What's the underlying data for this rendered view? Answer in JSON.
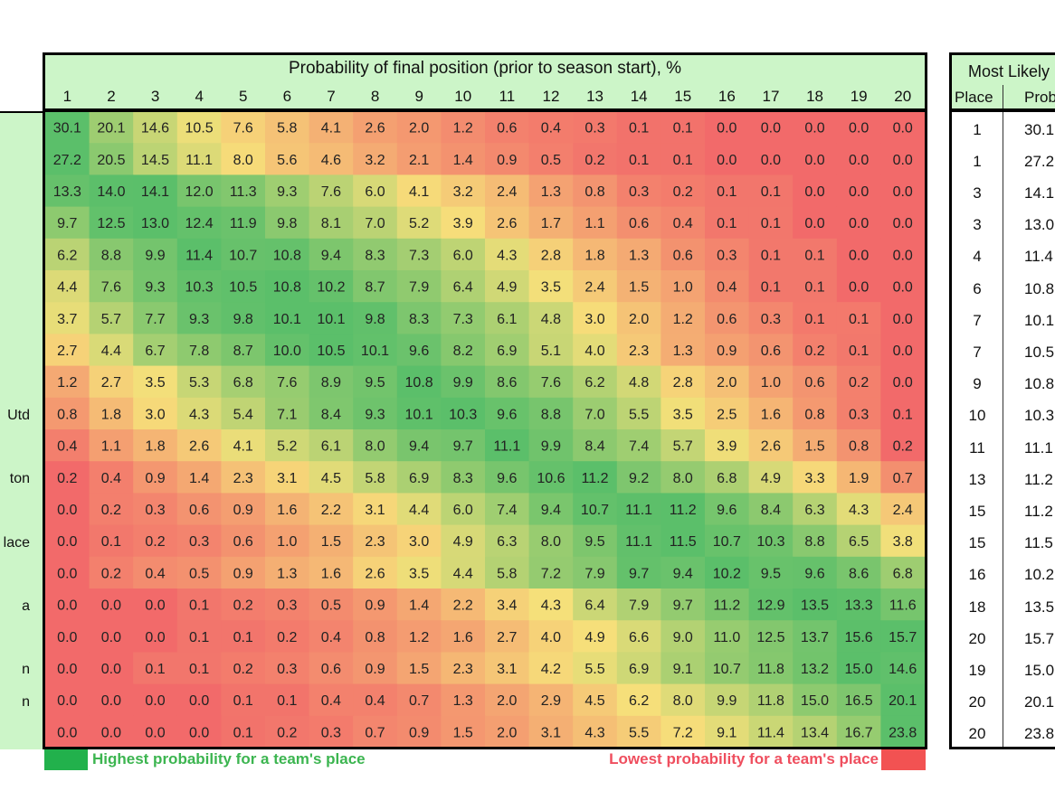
{
  "chart_data": {
    "type": "heatmap",
    "title": "Probability of final position (prior to season start), %",
    "columns": [
      1,
      2,
      3,
      4,
      5,
      6,
      7,
      8,
      9,
      10,
      11,
      12,
      13,
      14,
      15,
      16,
      17,
      18,
      19,
      20
    ],
    "team_fragments": [
      "",
      "",
      "",
      "",
      "",
      "",
      "",
      "",
      "",
      "Utd",
      "",
      "ton",
      "",
      "lace",
      "",
      "a",
      "",
      "n",
      "n",
      ""
    ],
    "matrix": [
      [
        30.1,
        20.1,
        14.6,
        10.5,
        7.6,
        5.8,
        4.1,
        2.6,
        2.0,
        1.2,
        0.6,
        0.4,
        0.3,
        0.1,
        0.1,
        0.0,
        0.0,
        0.0,
        0.0,
        0.0
      ],
      [
        27.2,
        20.5,
        14.5,
        11.1,
        8.0,
        5.6,
        4.6,
        3.2,
        2.1,
        1.4,
        0.9,
        0.5,
        0.2,
        0.1,
        0.1,
        0.0,
        0.0,
        0.0,
        0.0,
        0.0
      ],
      [
        13.3,
        14.0,
        14.1,
        12.0,
        11.3,
        9.3,
        7.6,
        6.0,
        4.1,
        3.2,
        2.4,
        1.3,
        0.8,
        0.3,
        0.2,
        0.1,
        0.1,
        0.0,
        0.0,
        0.0
      ],
      [
        9.7,
        12.5,
        13.0,
        12.4,
        11.9,
        9.8,
        8.1,
        7.0,
        5.2,
        3.9,
        2.6,
        1.7,
        1.1,
        0.6,
        0.4,
        0.1,
        0.1,
        0.0,
        0.0,
        0.0
      ],
      [
        6.2,
        8.8,
        9.9,
        11.4,
        10.7,
        10.8,
        9.4,
        8.3,
        7.3,
        6.0,
        4.3,
        2.8,
        1.8,
        1.3,
        0.6,
        0.3,
        0.1,
        0.1,
        0.0,
        0.0
      ],
      [
        4.4,
        7.6,
        9.3,
        10.3,
        10.5,
        10.8,
        10.2,
        8.7,
        7.9,
        6.4,
        4.9,
        3.5,
        2.4,
        1.5,
        1.0,
        0.4,
        0.1,
        0.1,
        0.0,
        0.0
      ],
      [
        3.7,
        5.7,
        7.7,
        9.3,
        9.8,
        10.1,
        10.1,
        9.8,
        8.3,
        7.3,
        6.1,
        4.8,
        3.0,
        2.0,
        1.2,
        0.6,
        0.3,
        0.1,
        0.1,
        0.0
      ],
      [
        2.7,
        4.4,
        6.7,
        7.8,
        8.7,
        10.0,
        10.5,
        10.1,
        9.6,
        8.2,
        6.9,
        5.1,
        4.0,
        2.3,
        1.3,
        0.9,
        0.6,
        0.2,
        0.1,
        0.0
      ],
      [
        1.2,
        2.7,
        3.5,
        5.3,
        6.8,
        7.6,
        8.9,
        9.5,
        10.8,
        9.9,
        8.6,
        7.6,
        6.2,
        4.8,
        2.8,
        2.0,
        1.0,
        0.6,
        0.2,
        0.0
      ],
      [
        0.8,
        1.8,
        3.0,
        4.3,
        5.4,
        7.1,
        8.4,
        9.3,
        10.1,
        10.3,
        9.6,
        8.8,
        7.0,
        5.5,
        3.5,
        2.5,
        1.6,
        0.8,
        0.3,
        0.1
      ],
      [
        0.4,
        1.1,
        1.8,
        2.6,
        4.1,
        5.2,
        6.1,
        8.0,
        9.4,
        9.7,
        11.1,
        9.9,
        8.4,
        7.4,
        5.7,
        3.9,
        2.6,
        1.5,
        0.8,
        0.2
      ],
      [
        0.2,
        0.4,
        0.9,
        1.4,
        2.3,
        3.1,
        4.5,
        5.8,
        6.9,
        8.3,
        9.6,
        10.6,
        11.2,
        9.2,
        8.0,
        6.8,
        4.9,
        3.3,
        1.9,
        0.7
      ],
      [
        0.0,
        0.2,
        0.3,
        0.6,
        0.9,
        1.6,
        2.2,
        3.1,
        4.4,
        6.0,
        7.4,
        9.4,
        10.7,
        11.1,
        11.2,
        9.6,
        8.4,
        6.3,
        4.3,
        2.4
      ],
      [
        0.0,
        0.1,
        0.2,
        0.3,
        0.6,
        1.0,
        1.5,
        2.3,
        3.0,
        4.9,
        6.3,
        8.0,
        9.5,
        11.1,
        11.5,
        10.7,
        10.3,
        8.8,
        6.5,
        3.8
      ],
      [
        0.0,
        0.2,
        0.4,
        0.5,
        0.9,
        1.3,
        1.6,
        2.6,
        3.5,
        4.4,
        5.8,
        7.2,
        7.9,
        9.7,
        9.4,
        10.2,
        9.5,
        9.6,
        8.6,
        6.8
      ],
      [
        0.0,
        0.0,
        0.0,
        0.1,
        0.2,
        0.3,
        0.5,
        0.9,
        1.4,
        2.2,
        3.4,
        4.3,
        6.4,
        7.9,
        9.7,
        11.2,
        12.9,
        13.5,
        13.3,
        11.6
      ],
      [
        0.0,
        0.0,
        0.0,
        0.1,
        0.1,
        0.2,
        0.4,
        0.8,
        1.2,
        1.6,
        2.7,
        4.0,
        4.9,
        6.6,
        9.0,
        11.0,
        12.5,
        13.7,
        15.6,
        15.7
      ],
      [
        0.0,
        0.0,
        0.1,
        0.1,
        0.2,
        0.3,
        0.6,
        0.9,
        1.5,
        2.3,
        3.1,
        4.2,
        5.5,
        6.9,
        9.1,
        10.7,
        11.8,
        13.2,
        15.0,
        14.6
      ],
      [
        0.0,
        0.0,
        0.0,
        0.0,
        0.1,
        0.1,
        0.4,
        0.4,
        0.7,
        1.3,
        2.0,
        2.9,
        4.5,
        6.2,
        8.0,
        9.9,
        11.8,
        15.0,
        16.5,
        20.1
      ],
      [
        0.0,
        0.0,
        0.0,
        0.0,
        0.1,
        0.2,
        0.3,
        0.7,
        0.9,
        1.5,
        2.0,
        3.1,
        4.3,
        5.5,
        7.2,
        9.1,
        11.4,
        13.4,
        16.7,
        23.8
      ]
    ],
    "most_likely": {
      "title": "Most Likely",
      "place_header": "Place",
      "prob_header": "Prob",
      "places": [
        1,
        1,
        3,
        3,
        4,
        6,
        7,
        7,
        9,
        10,
        11,
        13,
        15,
        15,
        16,
        18,
        20,
        19,
        20,
        20
      ],
      "probs": [
        "30.1",
        "27.2",
        "14.1",
        "13.0",
        "11.4",
        "10.8",
        "10.1",
        "10.5",
        "10.8",
        "10.3",
        "11.1",
        "11.2",
        "11.2",
        "11.5",
        "10.2",
        "13.5",
        "15.7",
        "15.0",
        "20.1",
        "23.8"
      ]
    },
    "legend": {
      "high_label": "Highest probability for a team's place",
      "low_label": "Lowest probability for a team's place",
      "high_color": "#22b14c",
      "low_color": "#f25252"
    },
    "colors": {
      "header_bg": "#ccf5c8",
      "scale_high": "#5bbf6a",
      "scale_mid": "#f6e07a",
      "scale_low": "#f26a6a"
    }
  }
}
